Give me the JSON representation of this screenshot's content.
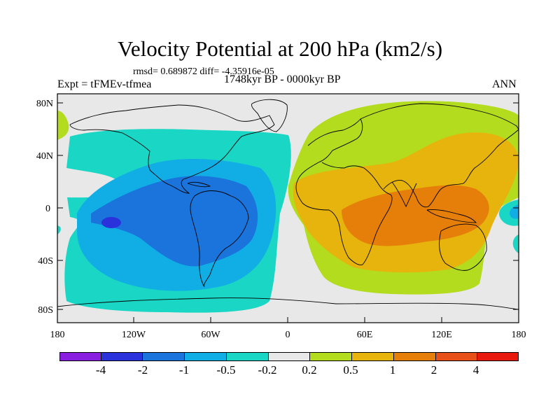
{
  "title": "Velocity Potential at 200 hPa (km2/s)",
  "stats": "rmsd= 0.689872 diff= -4.35916e-05",
  "experiment": "Expt = tFMEv-tfmea",
  "period": "1748kyr BP - 0000kyr BP",
  "season": "ANN",
  "lat_labels": [
    "80N",
    "40N",
    "0",
    "40S",
    "80S"
  ],
  "lon_labels": [
    "180",
    "120W",
    "60W",
    "0",
    "60E",
    "120E",
    "180"
  ],
  "colorbar": {
    "colors": [
      "#8a1ee0",
      "#2a32dc",
      "#1a74dc",
      "#11aee6",
      "#1ad6c4",
      "#e8e8e8",
      "#b4dc1e",
      "#e6b40c",
      "#e67e0a",
      "#e8501a",
      "#e81a10"
    ],
    "labels": [
      "-4",
      "-2",
      "-1",
      "-0.5",
      "-0.2",
      "0.2",
      "0.5",
      "1",
      "2",
      "4"
    ]
  },
  "map_colors": {
    "neutral": "#e8e8e8",
    "c_m02": "#1ad6c4",
    "c_m05": "#11aee6",
    "c_m1": "#1a74dc",
    "c_m2": "#2a32dc",
    "c_p02": "#b4dc1e",
    "c_p05": "#e6b40c",
    "c_p1": "#e67e0a"
  }
}
